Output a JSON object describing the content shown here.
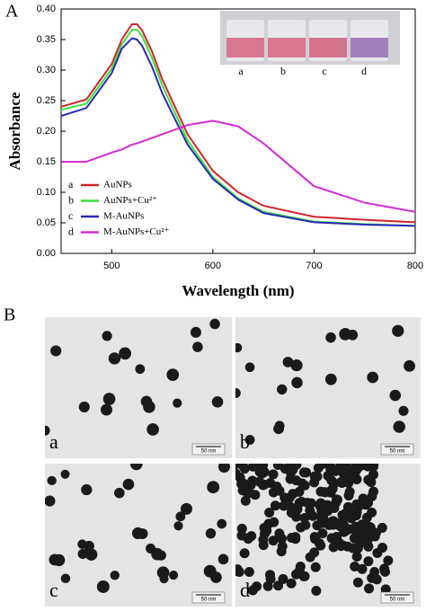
{
  "chart_data": {
    "type": "line",
    "x_label": "Wavelength (nm)",
    "y_label": "Absorbance",
    "x": [
      450,
      475,
      500,
      510,
      520,
      525,
      530,
      540,
      550,
      575,
      600,
      625,
      650,
      700,
      750,
      800
    ],
    "series": [
      {
        "name": "AuNPs",
        "label": "a",
        "color": "#d0262a",
        "values": [
          0.24,
          0.252,
          0.31,
          0.35,
          0.375,
          0.375,
          0.365,
          0.33,
          0.285,
          0.195,
          0.135,
          0.1,
          0.078,
          0.06,
          0.055,
          0.051
        ]
      },
      {
        "name": "AuNPs+Cu²⁺",
        "label": "b",
        "color": "#3ee03a",
        "values": [
          0.235,
          0.245,
          0.302,
          0.342,
          0.366,
          0.366,
          0.356,
          0.32,
          0.275,
          0.185,
          0.125,
          0.09,
          0.068,
          0.052,
          0.048,
          0.045
        ]
      },
      {
        "name": "M-AuNPs",
        "label": "c",
        "color": "#2a2ab8",
        "values": [
          0.225,
          0.238,
          0.295,
          0.335,
          0.352,
          0.35,
          0.34,
          0.305,
          0.262,
          0.178,
          0.122,
          0.088,
          0.066,
          0.051,
          0.047,
          0.045
        ]
      },
      {
        "name": "M-AuNPs+Cu²⁺",
        "label": "d",
        "color": "#d62ad6",
        "values": [
          0.15,
          0.15,
          0.165,
          0.17,
          0.178,
          0.18,
          0.183,
          0.189,
          0.195,
          0.21,
          0.217,
          0.208,
          0.18,
          0.11,
          0.083,
          0.068
        ]
      }
    ],
    "xlim": [
      450,
      800
    ],
    "xticks": [
      500,
      600,
      700,
      800
    ],
    "ylim": [
      0,
      0.4
    ],
    "yticks": [
      {
        "value": 0,
        "label": "0.00"
      },
      0.05,
      {
        "value": 0.1,
        "label": "0.10"
      },
      0.15,
      {
        "value": 0.2,
        "label": "0.20"
      },
      0.25,
      {
        "value": 0.3,
        "label": "0.30"
      },
      0.35,
      {
        "value": 0.4,
        "label": "0.40"
      }
    ],
    "legend": "lower left",
    "grid": false
  },
  "panel_labels": [
    "A",
    "B"
  ],
  "vial_labels": [
    "a",
    "b",
    "c",
    "d"
  ],
  "micrographs": [
    {
      "label": "a",
      "scale_bar": "50 nm"
    },
    {
      "label": "b",
      "scale_bar": "50 nm"
    },
    {
      "label": "c",
      "scale_bar": "50 nm"
    },
    {
      "label": "d",
      "scale_bar": "50 nm"
    }
  ]
}
